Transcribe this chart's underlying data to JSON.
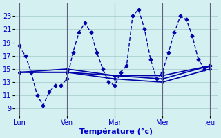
{
  "background_color": "#d4f0f0",
  "grid_color": "#a0c8c8",
  "line_color": "#0000aa",
  "xlabel": "Température (°c)",
  "xlabel_color": "#0000cc",
  "tick_label_color": "#0000cc",
  "day_label_color": "#0000cc",
  "ylim": [
    8,
    25
  ],
  "yticks": [
    9,
    11,
    13,
    15,
    17,
    19,
    21,
    23
  ],
  "day_positions": [
    0,
    48,
    96,
    144,
    192
  ],
  "day_labels": [
    "Lun",
    "Ven",
    "Mar",
    "Mer",
    "Jeu"
  ],
  "series1_x": [
    0,
    6,
    12,
    18,
    24,
    30,
    36,
    42,
    48,
    54,
    60,
    66,
    72,
    78,
    84,
    90,
    96,
    102,
    108,
    114,
    120,
    126,
    132,
    138,
    144,
    150,
    156,
    162,
    168,
    174,
    180,
    186,
    192
  ],
  "series1_y": [
    18.5,
    17,
    14.5,
    11,
    9.5,
    11.5,
    12.5,
    12.5,
    13.5,
    17.5,
    20.5,
    22,
    20.5,
    17.5,
    15,
    13.0,
    12.5,
    14.5,
    15.5,
    23.0,
    24.0,
    21.0,
    16.5,
    13.5,
    14.5,
    17.5,
    20.5,
    23.0,
    22.5,
    20.0,
    16.5,
    15.0,
    15.5
  ],
  "series2_x": [
    0,
    48,
    96,
    144,
    192
  ],
  "series2_y": [
    14.5,
    14.5,
    14.0,
    14.0,
    15.5
  ],
  "series3_x": [
    0,
    48,
    96,
    144,
    192
  ],
  "series3_y": [
    14.5,
    14.5,
    13.5,
    13.0,
    15.0
  ],
  "series4_x": [
    0,
    48,
    96,
    144,
    192
  ],
  "series4_y": [
    14.5,
    15.0,
    14.0,
    13.5,
    15.5
  ]
}
